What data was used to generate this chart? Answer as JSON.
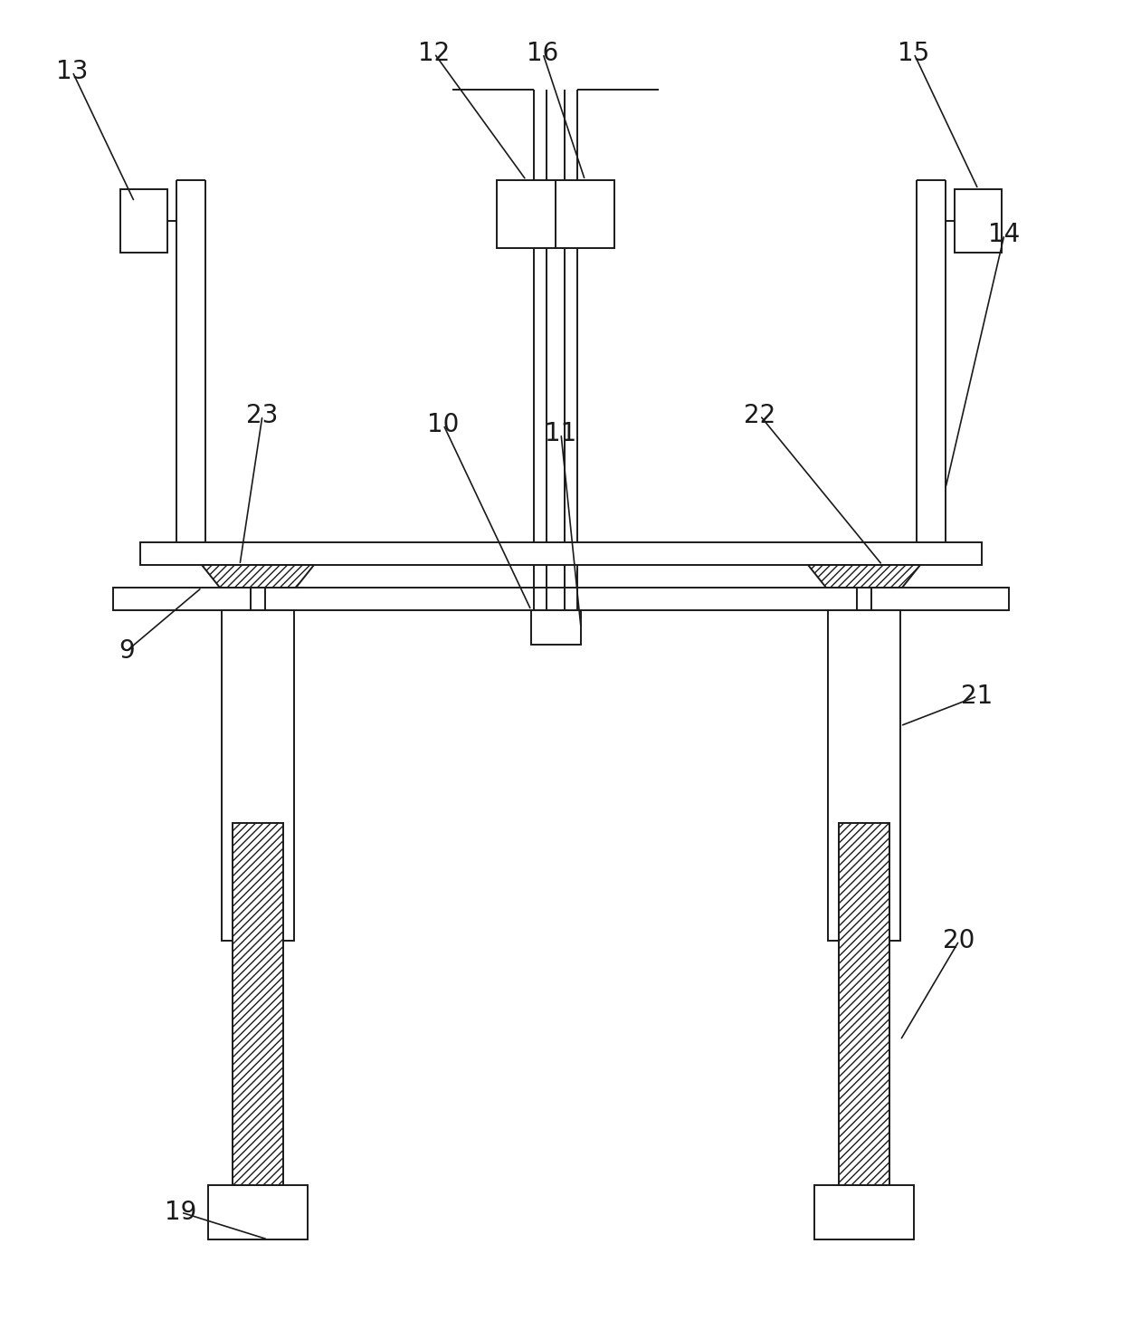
{
  "background": "#ffffff",
  "line_color": "#1a1a1a",
  "fig_width": 12.4,
  "fig_height": 14.69,
  "label_fontsize": 20,
  "lw": 1.4
}
